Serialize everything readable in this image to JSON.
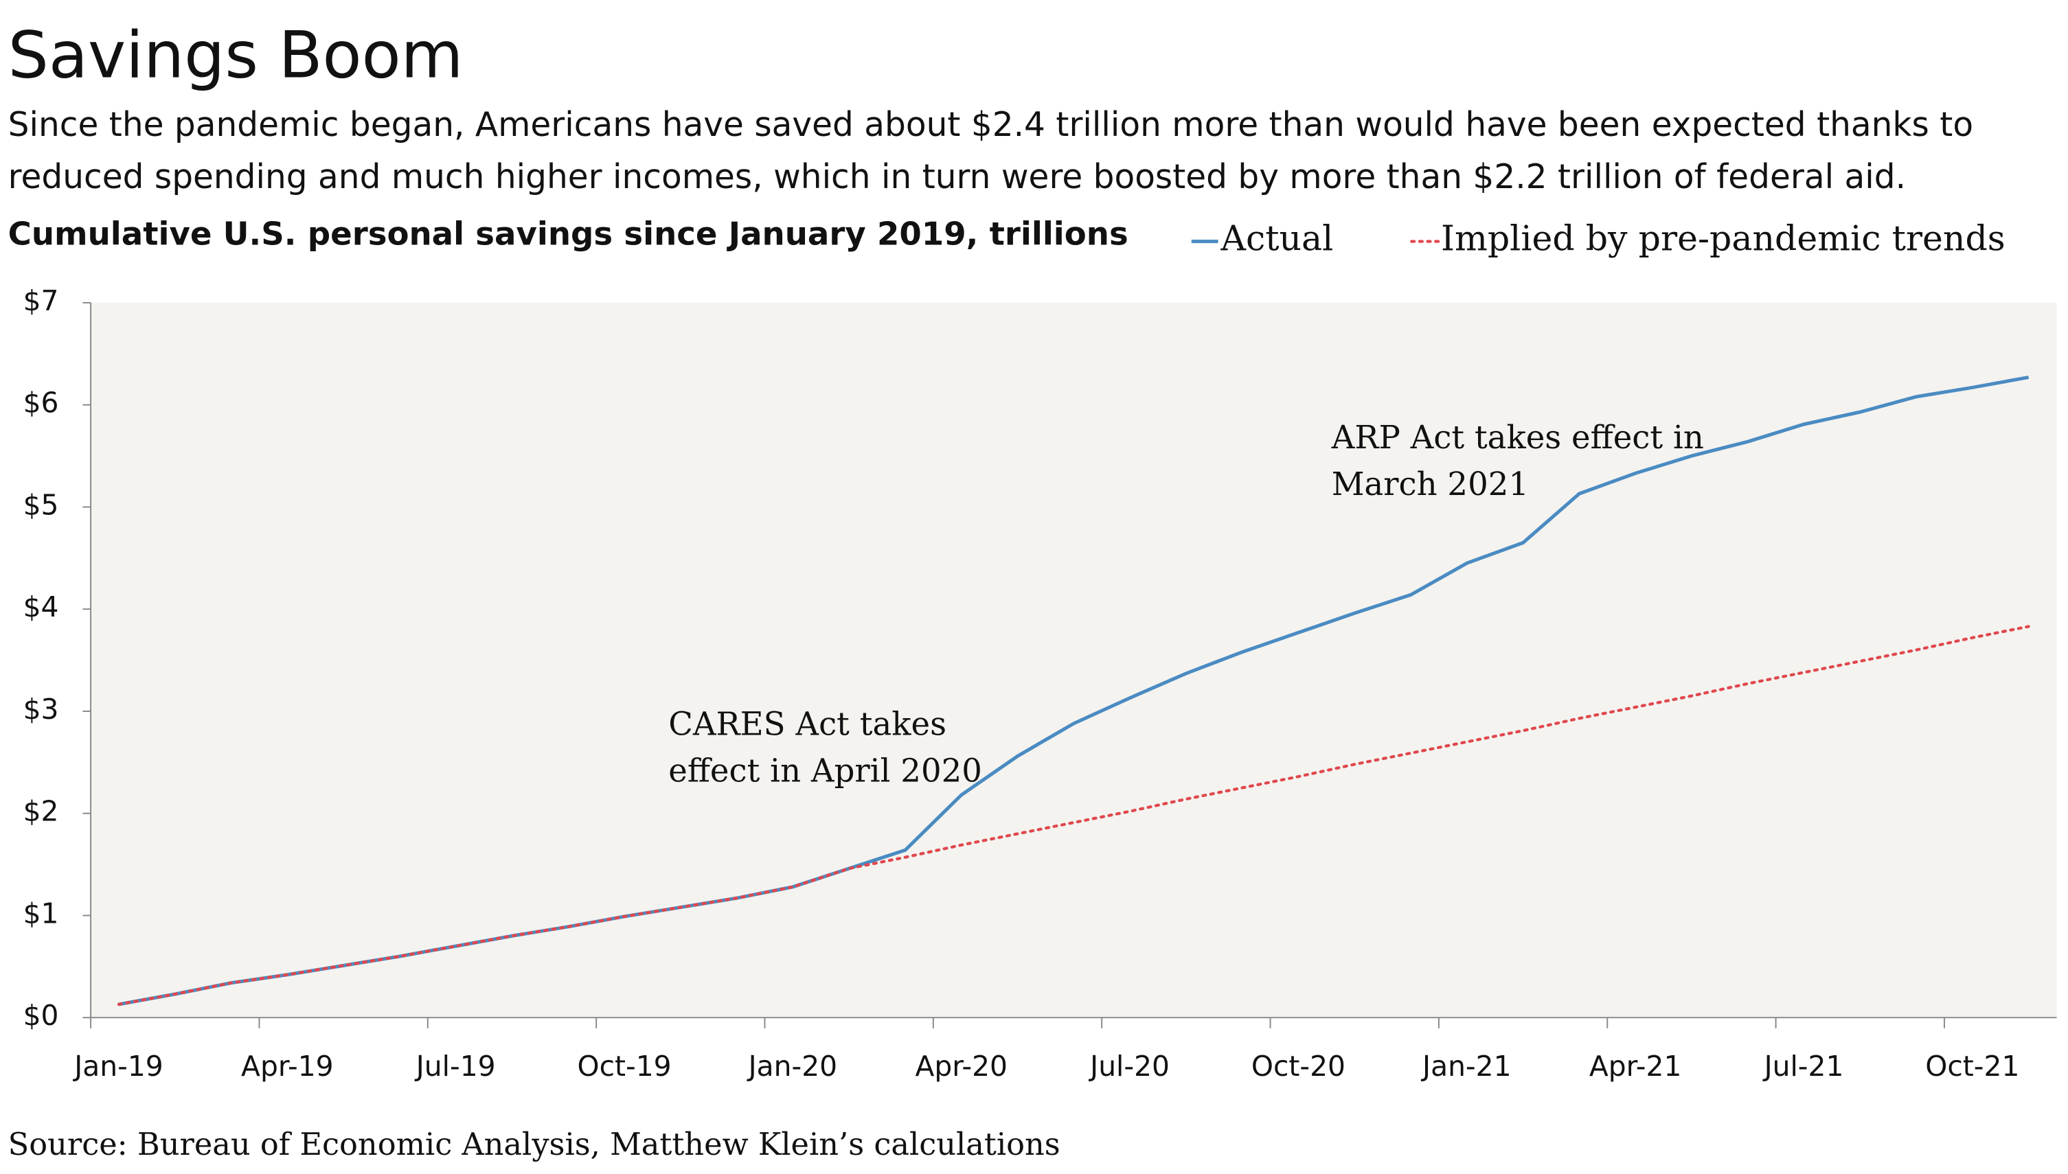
{
  "chart_data": {
    "type": "line",
    "title": "Savings Boom",
    "subtitle": "Since the pandemic began, Americans have saved about $2.4 trillion more than would have been expected thanks to reduced spending and much higher incomes, which in turn were boosted by more than $2.2 trillion of federal aid.",
    "chart_title": "Cumulative U.S. personal savings since January 2019, trillions",
    "source": "Source: Bureau of Economic Analysis, Matthew Klein’s calculations",
    "annotations": [
      [
        "CARES Act takes",
        "effect in April 2020"
      ],
      [
        "ARP Act takes effect in",
        "March 2021"
      ]
    ],
    "categories": [
      "Jan-19",
      null,
      null,
      "Apr-19",
      null,
      null,
      "Jul-19",
      null,
      null,
      "Oct-19",
      null,
      null,
      "Jan-20",
      null,
      null,
      "Apr-20",
      null,
      null,
      "Jul-20",
      null,
      null,
      "Oct-20",
      null,
      null,
      "Jan-21",
      null,
      null,
      "Apr-21",
      null,
      null,
      "Jul-21",
      null,
      null,
      "Oct-21",
      null
    ],
    "series": [
      {
        "name": "Actual",
        "color": "#4a8bc2",
        "style": "solid",
        "values": [
          0.13,
          0.23,
          0.34,
          0.42,
          0.51,
          0.6,
          0.7,
          0.8,
          0.89,
          0.99,
          1.08,
          1.17,
          1.28,
          1.46,
          1.64,
          2.18,
          2.56,
          2.88,
          3.13,
          3.37,
          3.58,
          3.77,
          3.96,
          4.14,
          4.45,
          4.65,
          5.13,
          5.33,
          5.5,
          5.64,
          5.81,
          5.93,
          6.08,
          6.17,
          6.27
        ]
      },
      {
        "name": "Implied by pre-pandemic trends",
        "color": "#e0474c",
        "style": "dotted",
        "values": [
          0.13,
          0.23,
          0.34,
          0.42,
          0.51,
          0.6,
          0.7,
          0.8,
          0.89,
          0.99,
          1.08,
          1.17,
          1.28,
          1.46,
          1.57,
          1.69,
          1.8,
          1.91,
          2.02,
          2.14,
          2.25,
          2.36,
          2.48,
          2.59,
          2.7,
          2.81,
          2.93,
          3.04,
          3.15,
          3.27,
          3.38,
          3.49,
          3.6,
          3.72,
          3.83
        ]
      }
    ],
    "ylim": [
      0,
      7
    ],
    "yticks": [
      {
        "value": 0,
        "label": "$0"
      },
      {
        "value": 1,
        "label": "$1"
      },
      {
        "value": 2,
        "label": "$2"
      },
      {
        "value": 3,
        "label": "$3"
      },
      {
        "value": 4,
        "label": "$4"
      },
      {
        "value": 5,
        "label": "$5"
      },
      {
        "value": 6,
        "label": "$6"
      },
      {
        "value": 7,
        "label": "$7"
      }
    ],
    "grid": false
  }
}
